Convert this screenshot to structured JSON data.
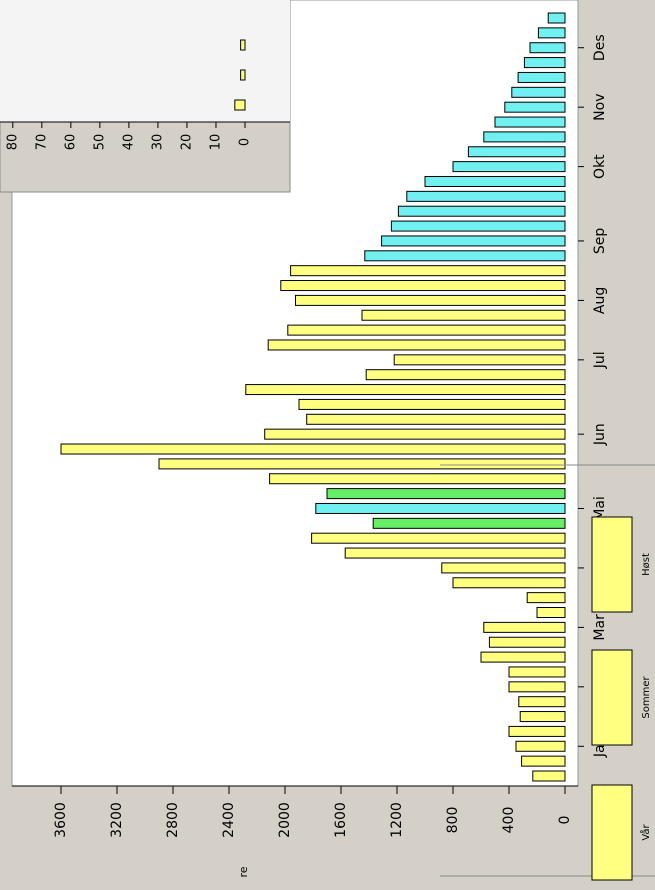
{
  "chart_data": [
    {
      "type": "bar",
      "orientation": "rotated",
      "categories": [
        null,
        null,
        "Jan",
        null,
        null,
        null,
        "Feb",
        null,
        null,
        null,
        "Mar",
        null,
        null,
        null,
        "Apr",
        null,
        null,
        null,
        "Mai",
        null,
        null,
        null,
        null,
        "Jun",
        null,
        null,
        null,
        null,
        "Jul",
        null,
        null,
        null,
        "Aug",
        null,
        null,
        null,
        "Sep",
        null,
        null,
        null,
        null,
        "Okt",
        null,
        null,
        null,
        "Nov",
        null,
        null,
        null,
        "Des",
        null,
        null
      ],
      "values": [
        230,
        310,
        350,
        400,
        320,
        330,
        400,
        400,
        600,
        540,
        580,
        200,
        270,
        800,
        880,
        1570,
        1810,
        1370,
        1780,
        1700,
        2110,
        2900,
        3600,
        2145,
        1845,
        1900,
        2280,
        1420,
        1220,
        2120,
        1980,
        1450,
        1925,
        2030,
        1960,
        1430,
        1310,
        1240,
        1190,
        1130,
        1000,
        800,
        690,
        580,
        500,
        430,
        380,
        335,
        290,
        250,
        190,
        120
      ],
      "colors": [
        "#ffff80",
        "#ffff80",
        "#ffff80",
        "#ffff80",
        "#ffff80",
        "#ffff80",
        "#ffff80",
        "#ffff80",
        "#ffff80",
        "#ffff80",
        "#ffff80",
        "#ffff80",
        "#ffff80",
        "#ffff80",
        "#ffff80",
        "#ffff80",
        "#ffff80",
        "#66ee66",
        "#70f0f0",
        "#66ee66",
        "#ffff80",
        "#ffff80",
        "#ffff80",
        "#ffff80",
        "#ffff80",
        "#ffff80",
        "#ffff80",
        "#ffff80",
        "#ffff80",
        "#ffff80",
        "#ffff80",
        "#ffff80",
        "#ffff80",
        "#ffff80",
        "#ffff80",
        "#70f0f0",
        "#70f0f0",
        "#70f0f0",
        "#70f0f0",
        "#70f0f0",
        "#70f0f0",
        "#70f0f0",
        "#70f0f0",
        "#70f0f0",
        "#70f0f0",
        "#70f0f0",
        "#70f0f0",
        "#70f0f0",
        "#70f0f0",
        "#70f0f0",
        "#70f0f0",
        "#70f0f0"
      ],
      "ylim": [
        0,
        3950
      ],
      "yticks": [
        0,
        400,
        800,
        1200,
        1600,
        2000,
        2400,
        2800,
        3200,
        3600
      ]
    },
    {
      "type": "bar",
      "orientation": "rotated",
      "values": [
        3.5,
        1.5,
        1.5
      ],
      "color": "#ffff80",
      "ylim": [
        0,
        82
      ],
      "yticks": [
        0,
        10,
        20,
        30,
        40,
        50,
        60,
        70,
        80
      ]
    }
  ],
  "legend": {
    "items": [
      "Vår",
      "Sommer",
      "Høst"
    ],
    "color": "#ffff80"
  },
  "fragment": "re"
}
